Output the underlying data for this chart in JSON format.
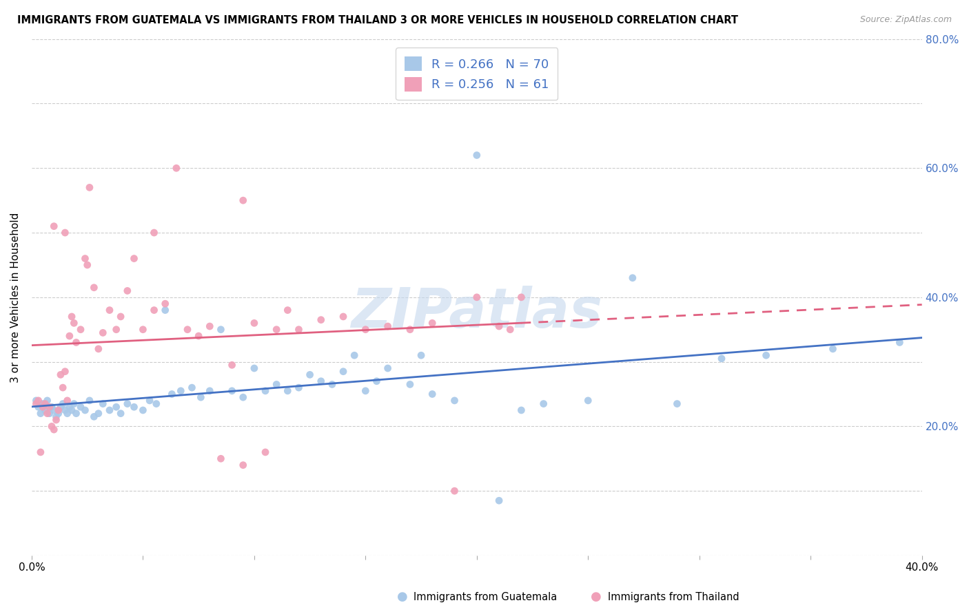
{
  "title": "IMMIGRANTS FROM GUATEMALA VS IMMIGRANTS FROM THAILAND 3 OR MORE VEHICLES IN HOUSEHOLD CORRELATION CHART",
  "source": "Source: ZipAtlas.com",
  "ylabel": "3 or more Vehicles in Household",
  "xlim": [
    0.0,
    0.4
  ],
  "ylim": [
    0.0,
    0.8
  ],
  "color_guatemala": "#a8c8e8",
  "color_thailand": "#f0a0b8",
  "line_color_guatemala": "#4472c4",
  "line_color_thailand": "#e06080",
  "watermark": "ZIPatlas",
  "R_guatemala": 0.266,
  "N_guatemala": 70,
  "R_thailand": 0.256,
  "N_thailand": 61,
  "guatemala_x": [
    0.002,
    0.003,
    0.004,
    0.005,
    0.006,
    0.007,
    0.008,
    0.009,
    0.01,
    0.011,
    0.012,
    0.013,
    0.014,
    0.015,
    0.016,
    0.017,
    0.018,
    0.019,
    0.02,
    0.022,
    0.024,
    0.026,
    0.028,
    0.03,
    0.032,
    0.035,
    0.038,
    0.04,
    0.043,
    0.046,
    0.05,
    0.053,
    0.056,
    0.06,
    0.063,
    0.067,
    0.072,
    0.076,
    0.08,
    0.085,
    0.09,
    0.095,
    0.1,
    0.105,
    0.11,
    0.115,
    0.12,
    0.125,
    0.13,
    0.135,
    0.14,
    0.145,
    0.15,
    0.155,
    0.16,
    0.17,
    0.175,
    0.18,
    0.19,
    0.2,
    0.21,
    0.22,
    0.23,
    0.25,
    0.27,
    0.29,
    0.31,
    0.33,
    0.36,
    0.39
  ],
  "guatemala_y": [
    0.24,
    0.23,
    0.22,
    0.235,
    0.225,
    0.24,
    0.22,
    0.23,
    0.225,
    0.215,
    0.22,
    0.23,
    0.235,
    0.225,
    0.22,
    0.23,
    0.225,
    0.235,
    0.22,
    0.23,
    0.225,
    0.24,
    0.215,
    0.22,
    0.235,
    0.225,
    0.23,
    0.22,
    0.235,
    0.23,
    0.225,
    0.24,
    0.235,
    0.38,
    0.25,
    0.255,
    0.26,
    0.245,
    0.255,
    0.35,
    0.255,
    0.245,
    0.29,
    0.255,
    0.265,
    0.255,
    0.26,
    0.28,
    0.27,
    0.265,
    0.285,
    0.31,
    0.255,
    0.27,
    0.29,
    0.265,
    0.31,
    0.25,
    0.24,
    0.62,
    0.085,
    0.225,
    0.235,
    0.24,
    0.43,
    0.235,
    0.305,
    0.31,
    0.32,
    0.33
  ],
  "thailand_x": [
    0.002,
    0.003,
    0.004,
    0.005,
    0.006,
    0.007,
    0.008,
    0.009,
    0.01,
    0.011,
    0.012,
    0.013,
    0.014,
    0.015,
    0.016,
    0.017,
    0.018,
    0.019,
    0.02,
    0.022,
    0.024,
    0.026,
    0.028,
    0.03,
    0.032,
    0.035,
    0.038,
    0.04,
    0.043,
    0.046,
    0.05,
    0.055,
    0.06,
    0.065,
    0.07,
    0.075,
    0.08,
    0.085,
    0.09,
    0.095,
    0.1,
    0.105,
    0.11,
    0.115,
    0.12,
    0.13,
    0.14,
    0.15,
    0.16,
    0.17,
    0.18,
    0.19,
    0.2,
    0.21,
    0.215,
    0.22,
    0.055,
    0.095,
    0.025,
    0.015,
    0.01
  ],
  "thailand_y": [
    0.235,
    0.24,
    0.16,
    0.23,
    0.235,
    0.22,
    0.23,
    0.2,
    0.195,
    0.21,
    0.225,
    0.28,
    0.26,
    0.285,
    0.24,
    0.34,
    0.37,
    0.36,
    0.33,
    0.35,
    0.46,
    0.57,
    0.415,
    0.32,
    0.345,
    0.38,
    0.35,
    0.37,
    0.41,
    0.46,
    0.35,
    0.38,
    0.39,
    0.6,
    0.35,
    0.34,
    0.355,
    0.15,
    0.295,
    0.14,
    0.36,
    0.16,
    0.35,
    0.38,
    0.35,
    0.365,
    0.37,
    0.35,
    0.355,
    0.35,
    0.36,
    0.1,
    0.4,
    0.355,
    0.35,
    0.4,
    0.5,
    0.55,
    0.45,
    0.5,
    0.51
  ]
}
